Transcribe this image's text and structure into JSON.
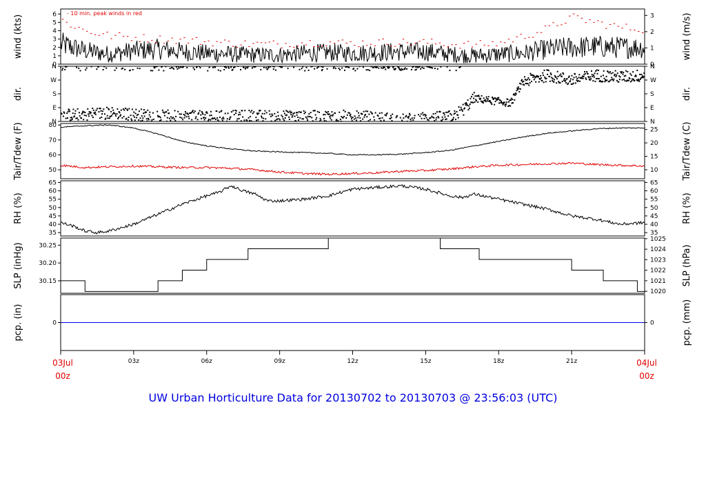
{
  "title": "UW Urban Horticulture Data for 20130702  to  20130703 @ 23:56:03  (UTC)",
  "x_axis": {
    "start": {
      "date": "03Jul",
      "time": "00z"
    },
    "end": {
      "date": "04Jul",
      "time": "00z"
    },
    "ticks": [
      {
        "hour": 3,
        "label": "03z"
      },
      {
        "hour": 6,
        "label": "06z"
      },
      {
        "hour": 9,
        "label": "09z"
      },
      {
        "hour": 12,
        "label": "12z"
      },
      {
        "hour": 15,
        "label": "15z"
      },
      {
        "hour": 18,
        "label": "18z"
      },
      {
        "hour": 21,
        "label": "21z"
      }
    ]
  },
  "colors": {
    "frame": "#000000",
    "primary": "#000000",
    "secondary": "#e00000",
    "precip": "#0000e0",
    "title": "#0000e0"
  },
  "chart_data": [
    {
      "id": "wind",
      "type": "line",
      "ylabel_left": "wind (kts)",
      "ylabel_right": "wind (m/s)",
      "annotation": "- 10 min. peak winds in red",
      "ylim": [
        0,
        6.6
      ],
      "yticks_left": [
        0,
        1,
        2,
        3,
        4,
        5,
        6
      ],
      "right_axis": {
        "factor": 0.5144,
        "ticks": [
          0,
          1,
          2,
          3
        ]
      },
      "series": [
        {
          "role": "mean",
          "color": "#000000",
          "x": [
            0,
            1,
            2,
            3,
            4,
            5,
            6,
            7,
            8,
            9,
            10,
            11,
            12,
            13,
            14,
            15,
            16,
            17,
            18,
            19,
            20,
            21,
            22,
            23,
            24
          ],
          "y": [
            2.4,
            1.6,
            1.2,
            1.6,
            1.8,
            1.5,
            1.3,
            1.2,
            1.1,
            1.1,
            1.3,
            1.4,
            1.3,
            1.4,
            1.5,
            1.5,
            1.2,
            1.0,
            1.2,
            1.3,
            1.8,
            2.0,
            2.1,
            2.0,
            2.0
          ]
        },
        {
          "role": "peak",
          "color": "#e00000",
          "x": [
            0,
            1,
            2,
            3,
            4,
            5,
            6,
            7,
            8,
            9,
            10,
            11,
            12,
            13,
            14,
            15,
            16,
            17,
            18,
            19,
            20,
            21,
            22,
            23,
            24
          ],
          "y": [
            5.3,
            4.0,
            3.4,
            3.2,
            3.0,
            2.9,
            2.7,
            2.5,
            2.4,
            2.4,
            2.6,
            2.6,
            2.5,
            2.6,
            2.6,
            2.6,
            2.4,
            2.3,
            2.5,
            3.3,
            4.2,
            5.6,
            5.0,
            4.4,
            4.2
          ]
        }
      ]
    },
    {
      "id": "dir",
      "type": "scatter",
      "ylabel_left": "dir.",
      "ylabel_right": "dir.",
      "ylim": [
        0,
        360
      ],
      "yticks": [
        {
          "value": 0,
          "label": "N"
        },
        {
          "value": 90,
          "label": "E"
        },
        {
          "value": 180,
          "label": "S"
        },
        {
          "value": 270,
          "label": "W"
        },
        {
          "value": 360,
          "label": "N"
        }
      ],
      "series": [
        {
          "role": "direction",
          "color": "#000000",
          "x": [
            0,
            2,
            4,
            6,
            8,
            10,
            12,
            14,
            16,
            16.5,
            17,
            18,
            18.5,
            19,
            20,
            21,
            22,
            23,
            24
          ],
          "y": [
            40,
            55,
            35,
            30,
            35,
            30,
            35,
            10,
            30,
            70,
            150,
            130,
            120,
            260,
            300,
            270,
            300,
            290,
            300
          ]
        }
      ]
    },
    {
      "id": "temp",
      "type": "line",
      "ylabel_left": "Tair/Tdew (F)",
      "ylabel_right": "Tair/Tdew (C)",
      "ylim": [
        44,
        81
      ],
      "yticks_left": [
        50,
        60,
        70,
        80
      ],
      "right_axis": {
        "celsius": true,
        "ticks": [
          10,
          15,
          20,
          25
        ]
      },
      "series": [
        {
          "role": "air_temperature",
          "color": "#000000",
          "x": [
            0,
            1,
            2,
            3,
            4,
            5,
            6,
            7,
            8,
            9,
            10,
            11,
            12,
            13,
            14,
            15,
            16,
            17,
            18,
            19,
            20,
            21,
            22,
            23,
            24
          ],
          "y": [
            78.5,
            79.5,
            80.0,
            78.0,
            74.0,
            69.0,
            66.0,
            64.0,
            62.5,
            62.0,
            61.5,
            61.0,
            60.0,
            60.0,
            60.5,
            61.5,
            63.0,
            66.0,
            69.0,
            72.0,
            74.5,
            76.0,
            77.5,
            78.0,
            78.0
          ]
        },
        {
          "role": "dew_point",
          "color": "#e00000",
          "x": [
            0,
            1,
            2,
            3,
            4,
            5,
            6,
            7,
            8,
            9,
            10,
            11,
            12,
            13,
            14,
            15,
            16,
            17,
            18,
            19,
            20,
            21,
            22,
            23,
            24
          ],
          "y": [
            53.0,
            51.5,
            52.0,
            52.5,
            52.0,
            51.5,
            51.5,
            51.0,
            50.0,
            48.5,
            47.5,
            47.0,
            47.5,
            48.0,
            49.0,
            49.5,
            50.5,
            52.0,
            53.0,
            53.5,
            54.0,
            54.5,
            53.5,
            53.0,
            52.5
          ]
        }
      ]
    },
    {
      "id": "rh",
      "type": "line",
      "ylabel_left": "RH (%)",
      "ylabel_right": "RH (%)",
      "ylim": [
        33,
        66
      ],
      "yticks_left": [
        35,
        40,
        45,
        50,
        55,
        60,
        65
      ],
      "yticks_right": [
        35,
        40,
        45,
        50,
        55,
        60,
        65
      ],
      "series": [
        {
          "role": "relative_humidity",
          "color": "#000000",
          "x": [
            0,
            0.5,
            1,
            1.5,
            2,
            3,
            4,
            5,
            6,
            6.5,
            7,
            7.5,
            8,
            8.5,
            9,
            10,
            11,
            12,
            13,
            14,
            15,
            16,
            16.5,
            17,
            18,
            19,
            20,
            21,
            22,
            23,
            24
          ],
          "y": [
            41,
            39,
            36,
            35,
            36,
            40,
            46,
            52,
            57,
            59,
            63,
            60,
            58,
            54,
            54,
            55,
            57,
            61,
            62,
            63,
            61,
            57,
            56,
            58,
            55,
            52,
            49,
            45,
            43,
            40,
            41
          ]
        }
      ]
    },
    {
      "id": "slp",
      "type": "line",
      "step": true,
      "ylabel_left": "SLP (inHg)",
      "ylabel_right": "SLP (hPa)",
      "ylim": [
        30.115,
        30.27
      ],
      "yticks_left": [
        30.15,
        30.2,
        30.25
      ],
      "right_axis": {
        "factor": 33.8639,
        "ticks": [
          1020,
          1021,
          1022,
          1023,
          1024,
          1025
        ]
      },
      "series": [
        {
          "role": "pressure",
          "color": "#000000",
          "x": [
            0,
            1,
            4,
            5,
            6,
            7.7,
            11,
            15.6,
            17.2,
            21,
            22.3,
            23.7,
            24
          ],
          "y": [
            30.15,
            30.12,
            30.15,
            30.18,
            30.21,
            30.24,
            30.27,
            30.24,
            30.21,
            30.18,
            30.15,
            30.12,
            30.12
          ]
        }
      ]
    },
    {
      "id": "pcp",
      "type": "line",
      "ylabel_left": "pcp. (in)",
      "ylabel_right": "pcp. (mm)",
      "ylim": [
        -1,
        1
      ],
      "yticks_left": [
        0
      ],
      "yticks_right": [
        0
      ],
      "series": [
        {
          "role": "precipitation",
          "color": "#0000e0",
          "x": [
            0,
            24
          ],
          "y": [
            0,
            0
          ]
        }
      ]
    }
  ]
}
